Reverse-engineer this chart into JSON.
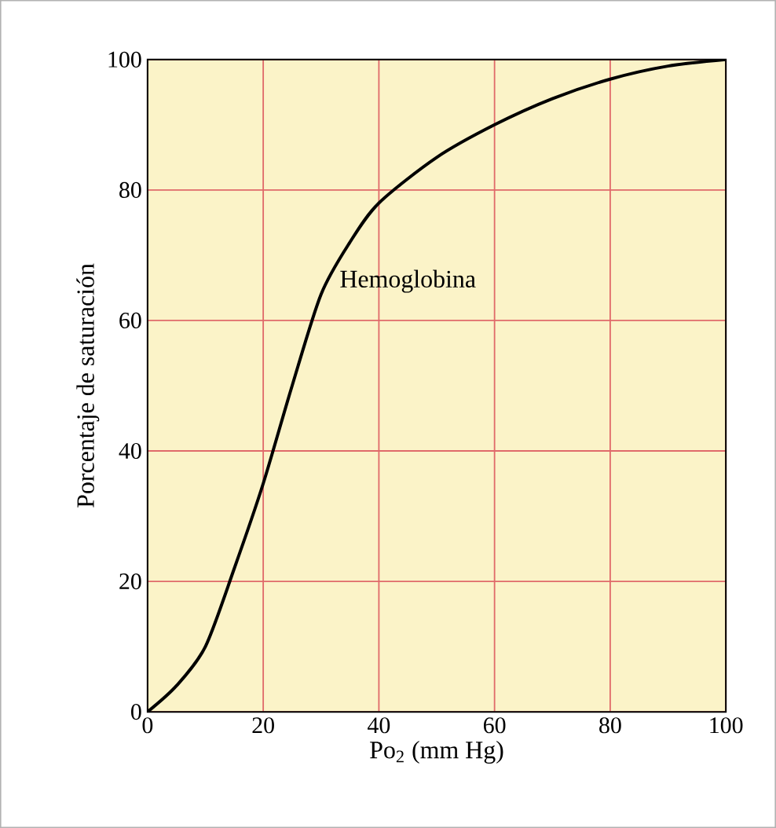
{
  "chart_data": {
    "type": "line",
    "xlabel": "Po$_{2}$ (mm Hg)",
    "ylabel": "Porcentaje de saturación",
    "x": [
      0,
      5,
      10,
      15,
      20,
      25,
      30,
      35,
      40,
      50,
      60,
      70,
      80,
      90,
      100
    ],
    "series": [
      {
        "color": "#000000",
        "values": [
          0,
          4,
          10,
          22,
          35,
          50,
          64,
          72,
          78,
          85,
          90,
          94,
          97,
          99,
          100
        ]
      }
    ],
    "annotations": [
      "Hemoglobina"
    ],
    "xlim": [
      0,
      100
    ],
    "ylim": [
      0,
      100
    ],
    "xticks": [
      0,
      20,
      40,
      60,
      80,
      100
    ],
    "yticks": [
      0,
      20,
      40,
      60,
      80,
      100
    ],
    "grid": true,
    "marker": "none",
    "line_style": "solid"
  }
}
